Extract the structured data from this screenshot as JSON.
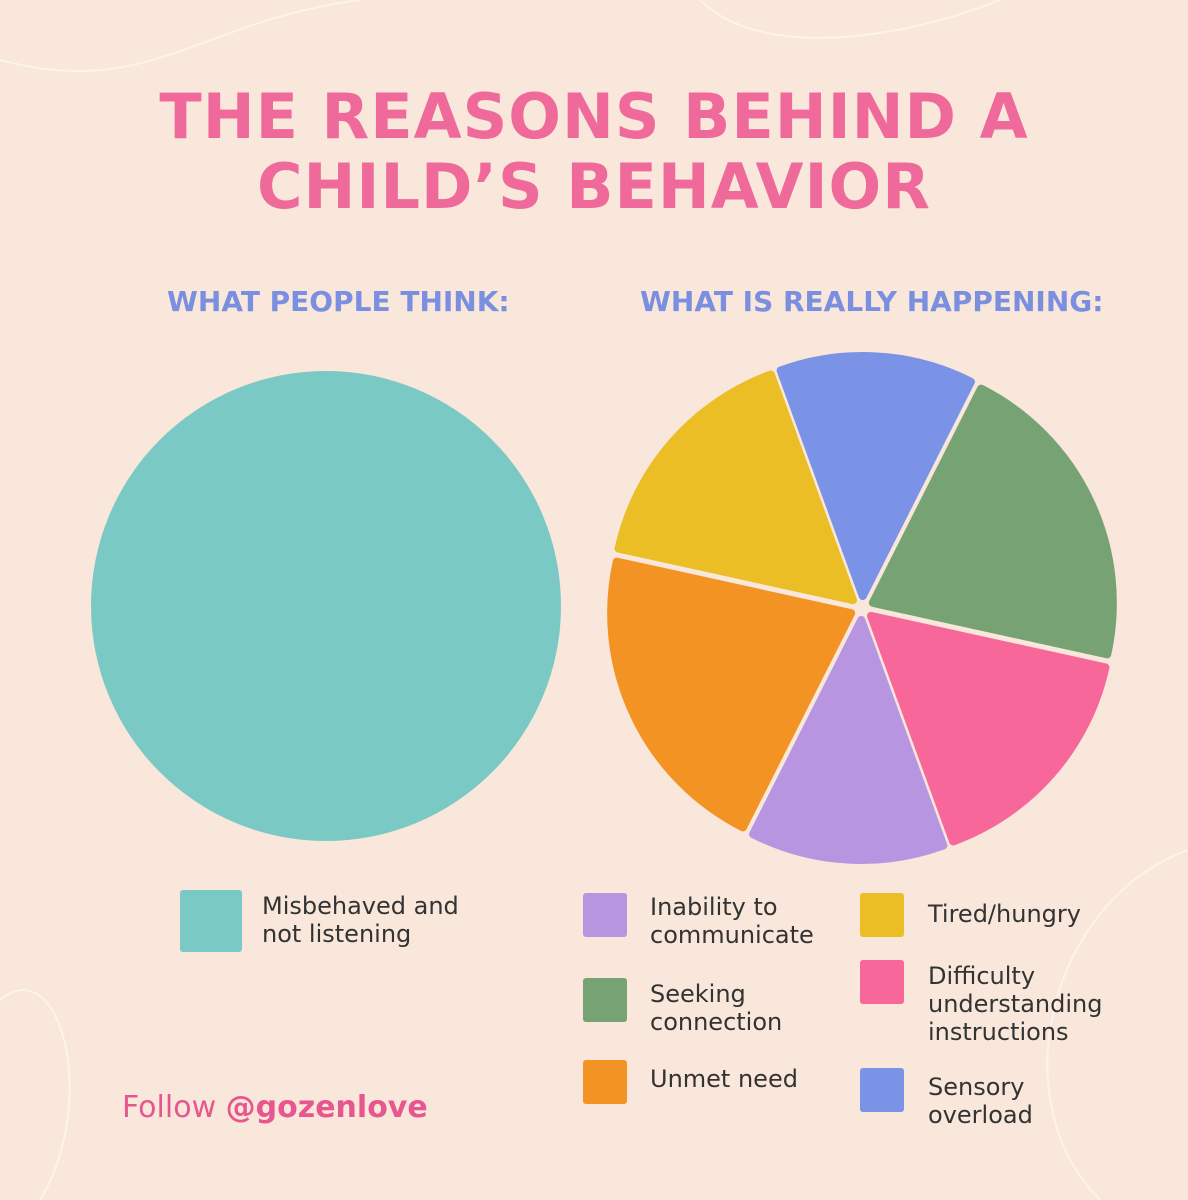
{
  "title": [
    "THE REASONS BEHIND A",
    "CHILD’S BEHAVIOR"
  ],
  "chart_data": [
    {
      "type": "pie",
      "title": "WHAT PEOPLE THINK:",
      "categories": [
        "Misbehaved and not listening"
      ],
      "values": [
        100
      ],
      "colors": [
        "#7bc9c5"
      ]
    },
    {
      "type": "pie",
      "title": "WHAT IS REALLY HAPPENING:",
      "categories": [
        "Sensory overload",
        "Seeking connection",
        "Difficulty understanding instructions",
        "Inability to communicate",
        "Unmet need",
        "Tired/hungry"
      ],
      "values": [
        13,
        21,
        16,
        13,
        21,
        16
      ],
      "colors": [
        "#7b93e6",
        "#77a274",
        "#f7679a",
        "#b895e0",
        "#f39323",
        "#ebbe25"
      ]
    }
  ],
  "footer": {
    "text": "Follow",
    "handle": "@gozenlove"
  }
}
